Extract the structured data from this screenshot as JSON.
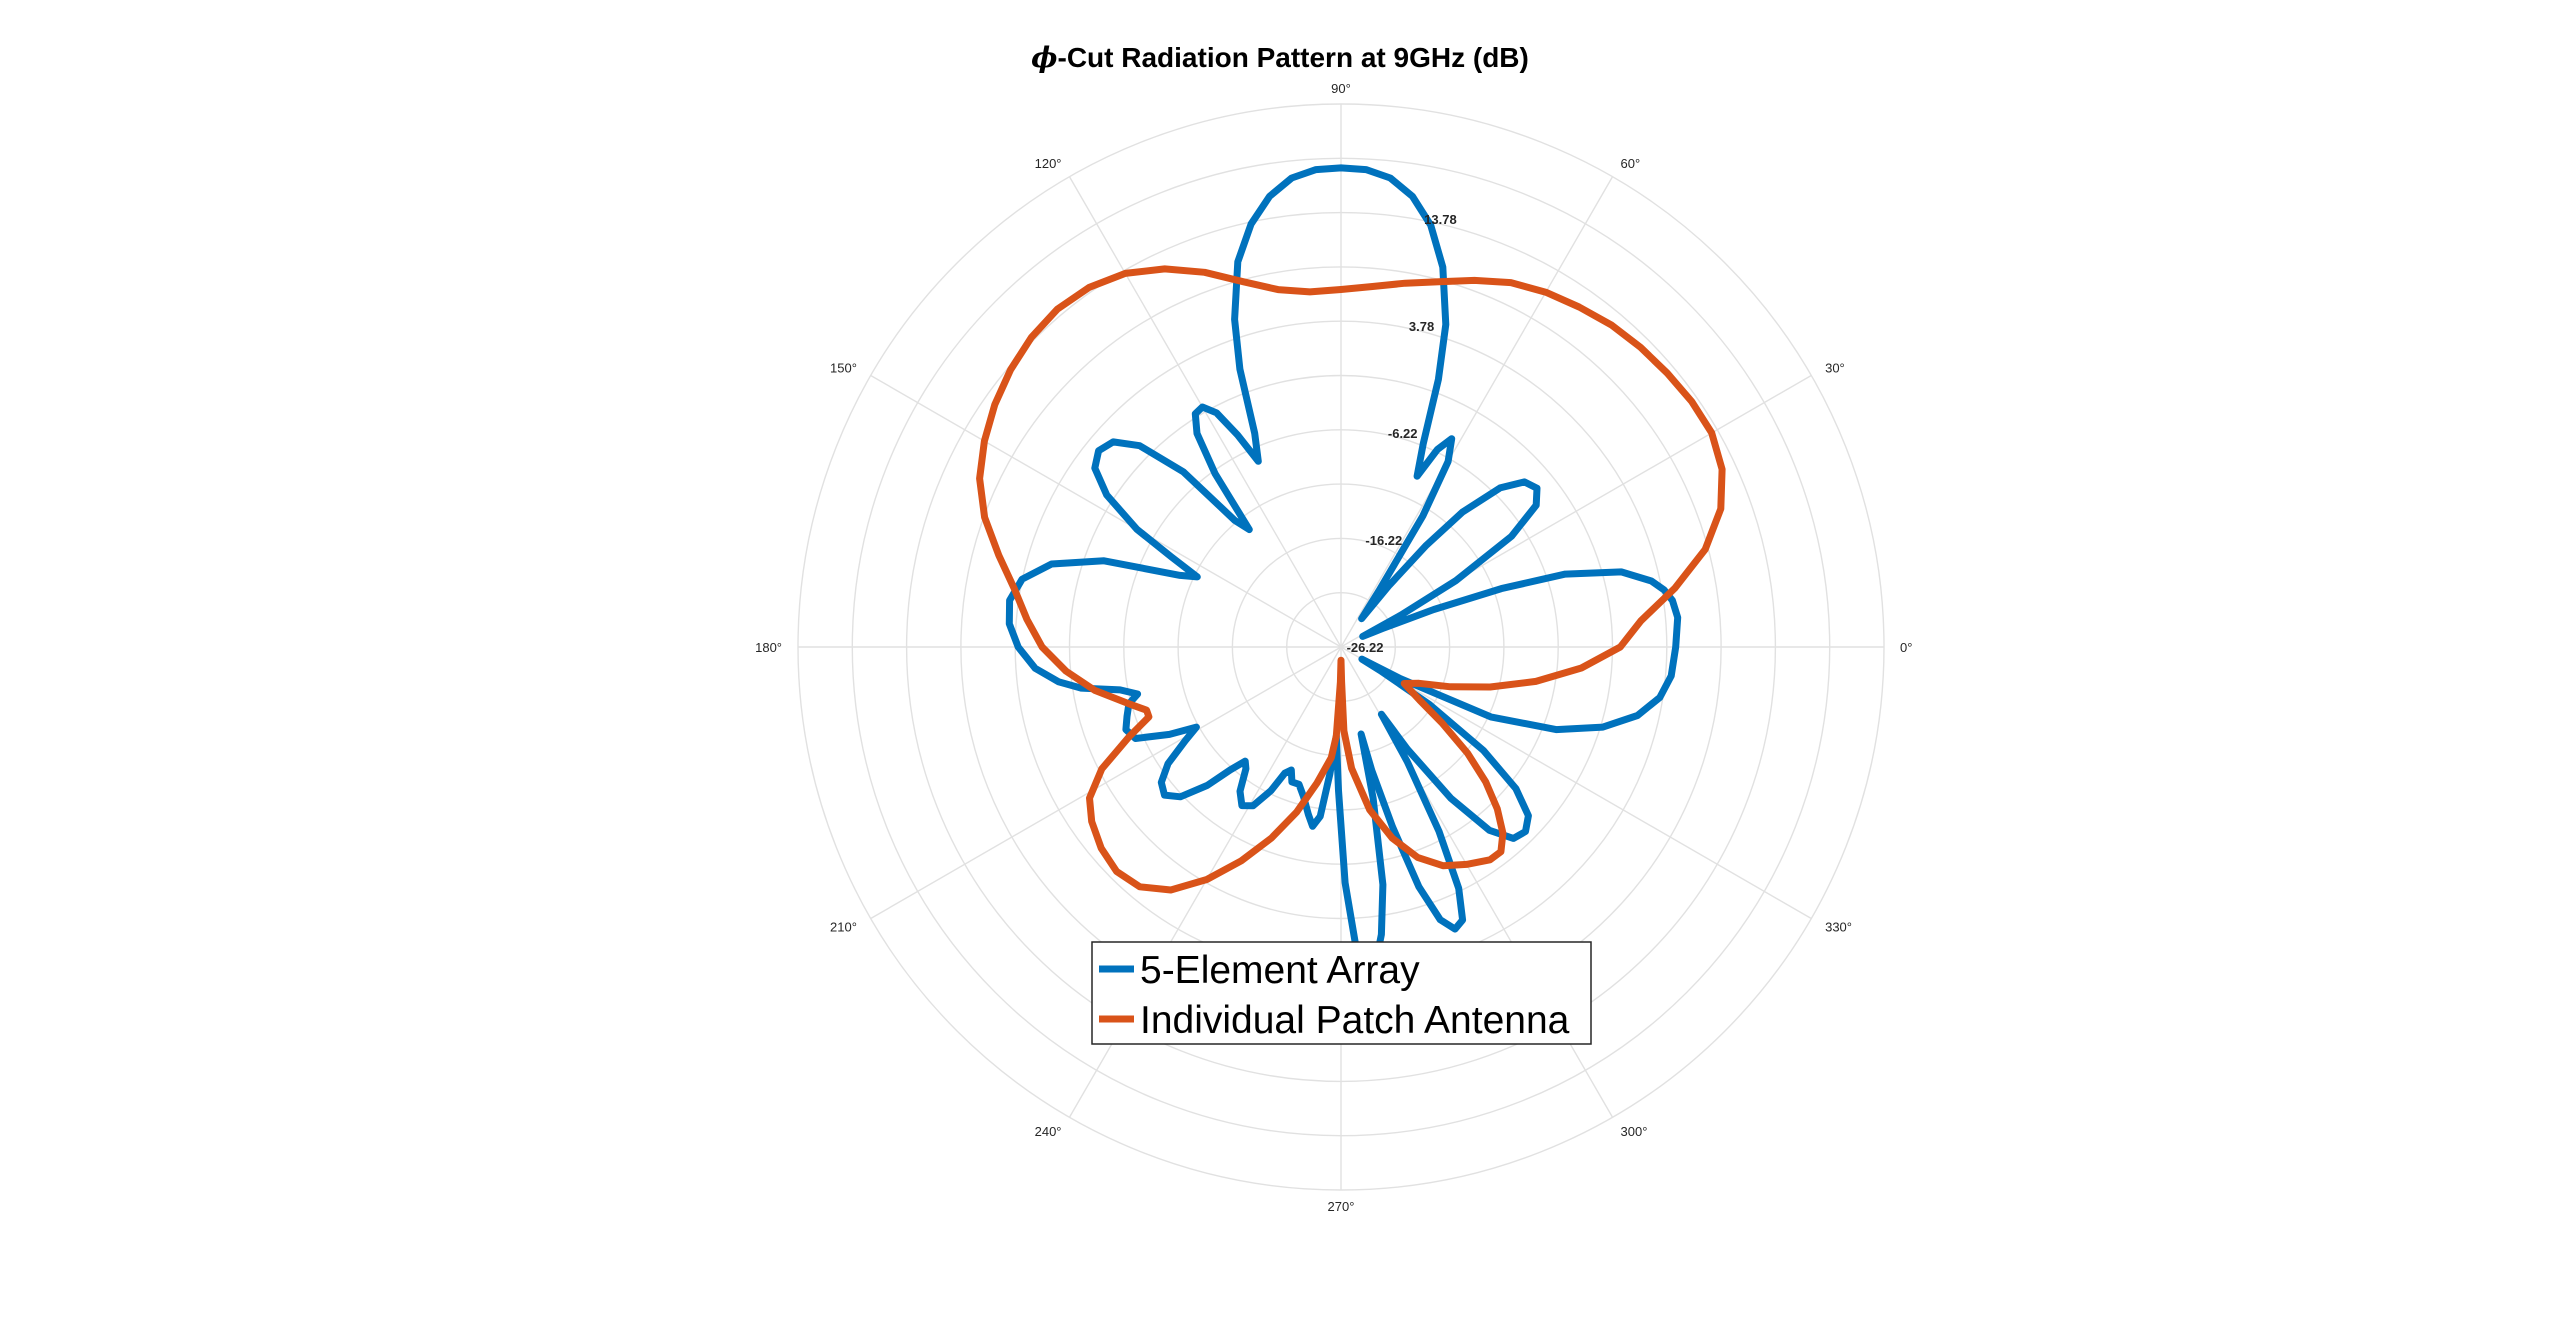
{
  "chart_data": {
    "type": "polar-line",
    "title_symbol": "ϕ",
    "title_text": "-Cut Radiation Pattern at 9GHz (dB)",
    "radial_tick_labels": [
      "13.78",
      "3.78",
      "-6.22",
      "-16.22",
      "-26.22"
    ],
    "rlim": [
      -26.22,
      23.78
    ],
    "angle_tick_labels": [
      {
        "deg": 0,
        "label": "0°"
      },
      {
        "deg": 30,
        "label": "30°"
      },
      {
        "deg": 60,
        "label": "60°"
      },
      {
        "deg": 90,
        "label": "90°"
      },
      {
        "deg": 120,
        "label": "120°"
      },
      {
        "deg": 150,
        "label": "150°"
      },
      {
        "deg": 180,
        "label": "180°"
      },
      {
        "deg": 210,
        "label": "210°"
      },
      {
        "deg": 240,
        "label": "240°"
      },
      {
        "deg": 270,
        "label": "270°"
      },
      {
        "deg": 300,
        "label": "300°"
      },
      {
        "deg": 330,
        "label": "330°"
      }
    ],
    "grid": true,
    "legend_position": "bottom-center",
    "series": [
      {
        "name": "5-Element Array",
        "color": "#0072BD",
        "points": [
          [
            0,
            4.6
          ],
          [
            5,
            4.9
          ],
          [
            8,
            4.6
          ],
          [
            10,
            4.0
          ],
          [
            12,
            3.0
          ],
          [
            15,
            0.5
          ],
          [
            18,
            -4.5
          ],
          [
            20,
            -10.5
          ],
          [
            22,
            -17
          ],
          [
            24,
            -22
          ],
          [
            26,
            -24
          ],
          [
            28,
            -20
          ],
          [
            30,
            -14
          ],
          [
            33,
            -7.5
          ],
          [
            36,
            -4
          ],
          [
            39,
            -3.0
          ],
          [
            42,
            -3.5
          ],
          [
            45,
            -5.5
          ],
          [
            48,
            -9.5
          ],
          [
            50,
            -14
          ],
          [
            52,
            -19
          ],
          [
            54,
            -23
          ],
          [
            56,
            -20
          ],
          [
            58,
            -12
          ],
          [
            60,
            -6.5
          ],
          [
            62,
            -4.5
          ],
          [
            64,
            -6
          ],
          [
            66,
            -9
          ],
          [
            68,
            -6
          ],
          [
            70,
            0
          ],
          [
            72,
            5
          ],
          [
            75,
            10
          ],
          [
            78,
            13.5
          ],
          [
            81,
            15.8
          ],
          [
            84,
            17.2
          ],
          [
            87,
            17.8
          ],
          [
            90,
            17.9
          ],
          [
            93,
            17.8
          ],
          [
            96,
            17.2
          ],
          [
            99,
            15.8
          ],
          [
            102,
            13.6
          ],
          [
            105,
            10.5
          ],
          [
            108,
            5.5
          ],
          [
            110,
            1
          ],
          [
            112,
            -5
          ],
          [
            114,
            -7.5
          ],
          [
            116,
            -4.5
          ],
          [
            118,
            -1.8
          ],
          [
            120,
            -0.7
          ],
          [
            122,
            -0.9
          ],
          [
            124,
            -2.5
          ],
          [
            126,
            -6.5
          ],
          [
            128,
            -12.5
          ],
          [
            130,
            -11
          ],
          [
            132,
            -4.5
          ],
          [
            135,
            0
          ],
          [
            138,
            2.0
          ],
          [
            141,
            2.5
          ],
          [
            144,
            1.8
          ],
          [
            147,
            -0.5
          ],
          [
            150,
            -4.5
          ],
          [
            152,
            -8.5
          ],
          [
            154,
            -11.5
          ],
          [
            156,
            -10
          ],
          [
            160,
            -3
          ],
          [
            164,
            1.5
          ],
          [
            168,
            3.8
          ],
          [
            172,
            4.6
          ],
          [
            176,
            4.4
          ],
          [
            180,
            3.5
          ],
          [
            184,
            2.0
          ],
          [
            187,
            0
          ],
          [
            189,
            -2
          ],
          [
            191,
            -5.5
          ],
          [
            193,
            -7
          ],
          [
            195,
            -6
          ],
          [
            198,
            -5.5
          ],
          [
            201,
            -5
          ],
          [
            204,
            -5.5
          ],
          [
            207,
            -8.5
          ],
          [
            209,
            -11
          ],
          [
            211,
            -9.5
          ],
          [
            214,
            -7
          ],
          [
            217,
            -5.5
          ],
          [
            220,
            -5.0
          ],
          [
            223,
            -6
          ],
          [
            226,
            -8.5
          ],
          [
            228,
            -11
          ],
          [
            230,
            -12.5
          ],
          [
            232,
            -12
          ],
          [
            235,
            -10
          ],
          [
            238,
            -9
          ],
          [
            241,
            -9.5
          ],
          [
            244,
            -11.5
          ],
          [
            246,
            -13.5
          ],
          [
            248,
            -14
          ],
          [
            250,
            -13
          ],
          [
            253,
            -13
          ],
          [
            256,
            -12
          ],
          [
            259,
            -10.5
          ],
          [
            261,
            -9.5
          ],
          [
            263,
            -10.5
          ],
          [
            265,
            -14.5
          ],
          [
            267,
            -18
          ],
          [
            269,
            -13
          ],
          [
            271,
            -4.5
          ],
          [
            273,
            2
          ],
          [
            274,
            3.5
          ],
          [
            275,
            3.8
          ],
          [
            276,
            3.5
          ],
          [
            278,
            0.5
          ],
          [
            280,
            -4
          ],
          [
            282,
            -12
          ],
          [
            283,
            -18
          ],
          [
            284,
            -14.5
          ],
          [
            286,
            -9
          ],
          [
            288,
            -3
          ],
          [
            290,
            0.5
          ],
          [
            292,
            1.8
          ],
          [
            294,
            1.3
          ],
          [
            296,
            -1.5
          ],
          [
            298,
            -7
          ],
          [
            300,
            -14
          ],
          [
            301,
            -19
          ],
          [
            303,
            -15
          ],
          [
            306,
            -9
          ],
          [
            309,
            -4.5
          ],
          [
            312,
            -2.5
          ],
          [
            315,
            -2.2
          ],
          [
            318,
            -3.0
          ],
          [
            321,
            -5.5
          ],
          [
            324,
            -10
          ],
          [
            327,
            -16.5
          ],
          [
            329,
            -22
          ],
          [
            330,
            -24
          ],
          [
            332,
            -20
          ],
          [
            335,
            -11
          ],
          [
            339,
            -5
          ],
          [
            343,
            -1
          ],
          [
            347,
            1.8
          ],
          [
            351,
            3.5
          ],
          [
            355,
            4.3
          ],
          [
            360,
            4.6
          ]
        ]
      },
      {
        "name": "Individual Patch Antenna",
        "color": "#D95319",
        "points": [
          [
            0,
            -0.5
          ],
          [
            5,
            1.5
          ],
          [
            10,
            5
          ],
          [
            15,
            8.5
          ],
          [
            20,
            11
          ],
          [
            25,
            12.5
          ],
          [
            30,
            13.2
          ],
          [
            35,
            13.2
          ],
          [
            40,
            13.0
          ],
          [
            45,
            12.8
          ],
          [
            50,
            12.5
          ],
          [
            55,
            12.0
          ],
          [
            60,
            11.5
          ],
          [
            65,
            10.8
          ],
          [
            70,
            9.7
          ],
          [
            75,
            8.6
          ],
          [
            80,
            7.8
          ],
          [
            85,
            7.1
          ],
          [
            90,
            6.7
          ],
          [
            95,
            6.6
          ],
          [
            100,
            7.2
          ],
          [
            105,
            8.6
          ],
          [
            110,
            10.5
          ],
          [
            115,
            12.2
          ],
          [
            120,
            13.5
          ],
          [
            125,
            14.2
          ],
          [
            130,
            14.4
          ],
          [
            135,
            14.1
          ],
          [
            140,
            13.5
          ],
          [
            145,
            12.7
          ],
          [
            150,
            11.7
          ],
          [
            155,
            10.5
          ],
          [
            160,
            8.7
          ],
          [
            165,
            6.4
          ],
          [
            170,
            4.3
          ],
          [
            175,
            2.8
          ],
          [
            180,
            1.3
          ],
          [
            185,
            -0.8
          ],
          [
            190,
            -3.2
          ],
          [
            195,
            -6
          ],
          [
            198,
            -7.4
          ],
          [
            200,
            -7.4
          ],
          [
            203,
            -5
          ],
          [
            207,
            -1.5
          ],
          [
            211,
            0.8
          ],
          [
            215,
            1.8
          ],
          [
            220,
            2.6
          ],
          [
            225,
            3.0
          ],
          [
            230,
            2.6
          ],
          [
            235,
            1.1
          ],
          [
            240,
            -1.5
          ],
          [
            245,
            -4.5
          ],
          [
            250,
            -7.5
          ],
          [
            255,
            -10.5
          ],
          [
            260,
            -13.5
          ],
          [
            265,
            -16
          ],
          [
            267,
            -18
          ],
          [
            269,
            -23
          ],
          [
            270,
            -25
          ],
          [
            271,
            -23
          ],
          [
            272,
            -18.5
          ],
          [
            275,
            -15
          ],
          [
            280,
            -11
          ],
          [
            285,
            -8
          ],
          [
            290,
            -5.6
          ],
          [
            295,
            -4
          ],
          [
            300,
            -3.1
          ],
          [
            305,
            -2.3
          ],
          [
            308,
            -2.3
          ],
          [
            311,
            -3.5
          ],
          [
            314,
            -5.5
          ],
          [
            317,
            -8
          ],
          [
            320,
            -11
          ],
          [
            323,
            -14.5
          ],
          [
            326,
            -17.5
          ],
          [
            330,
            -19.5
          ],
          [
            335,
            -18.3
          ],
          [
            340,
            -15.5
          ],
          [
            345,
            -12
          ],
          [
            350,
            -8
          ],
          [
            355,
            -4
          ],
          [
            360,
            -0.5
          ]
        ]
      }
    ]
  }
}
